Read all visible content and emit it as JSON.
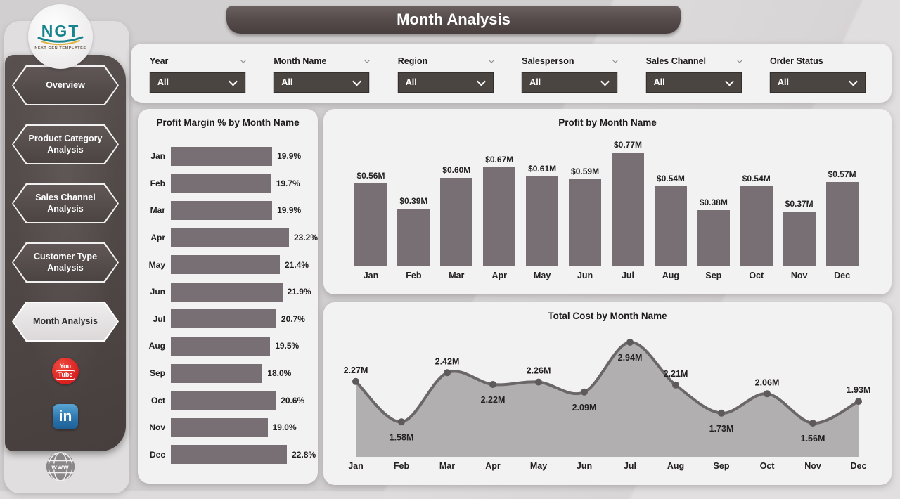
{
  "page_title": "Month Analysis",
  "logo": {
    "text": "NGT",
    "subtext": "NEXT GEN TEMPLATES"
  },
  "colors": {
    "page_bg": "#d2cfd0",
    "card_bg": "#f3f2f2",
    "dark_accent": "#4b4542",
    "bar_fill": "#786f74",
    "area_fill": "#b2afb0",
    "line_color": "#6b6667",
    "sidebar_active_bg": "#e5e2e3",
    "youtube_red": "#d91f1f",
    "linkedin_blue": "#2d76ae"
  },
  "sidebar": {
    "items": [
      {
        "label": "Overview",
        "active": false
      },
      {
        "label": "Product Category Analysis",
        "active": false
      },
      {
        "label": "Sales Channel Analysis",
        "active": false
      },
      {
        "label": "Customer Type Analysis",
        "active": false
      },
      {
        "label": "Month Analysis",
        "active": true
      }
    ],
    "social": {
      "youtube": {
        "line1": "You",
        "line2": "Tube"
      },
      "linkedin": {
        "text": "in"
      },
      "website": {
        "text": "www"
      }
    }
  },
  "filters": [
    {
      "label": "Year",
      "value": "All",
      "header_chevron": true
    },
    {
      "label": "Month Name",
      "value": "All",
      "header_chevron": true
    },
    {
      "label": "Region",
      "value": "All",
      "header_chevron": true
    },
    {
      "label": "Salesperson",
      "value": "All",
      "header_chevron": true
    },
    {
      "label": "Sales Channel",
      "value": "All",
      "header_chevron": true
    },
    {
      "label": "Order Status",
      "value": "All",
      "header_chevron": false
    }
  ],
  "chart_data": [
    {
      "type": "bar",
      "orientation": "horizontal",
      "title": "Profit Margin % by Month Name",
      "categories": [
        "Jan",
        "Feb",
        "Mar",
        "Apr",
        "May",
        "Jun",
        "Jul",
        "Aug",
        "Sep",
        "Oct",
        "Nov",
        "Dec"
      ],
      "values": [
        19.9,
        19.7,
        19.9,
        23.2,
        21.4,
        21.9,
        20.7,
        19.5,
        18.0,
        20.6,
        19.0,
        22.8
      ],
      "labels": [
        "19.9%",
        "19.7%",
        "19.9%",
        "23.2%",
        "21.4%",
        "21.9%",
        "20.7%",
        "19.5%",
        "18.0%",
        "20.6%",
        "19.0%",
        "22.8%"
      ],
      "xlabel": "",
      "ylabel": "",
      "xlim": [
        0,
        23.2
      ],
      "grid": false,
      "legend": false
    },
    {
      "type": "bar",
      "orientation": "vertical",
      "title": "Profit by Month Name",
      "categories": [
        "Jan",
        "Feb",
        "Mar",
        "Apr",
        "May",
        "Jun",
        "Jul",
        "Aug",
        "Sep",
        "Oct",
        "Nov",
        "Dec"
      ],
      "values": [
        0.56,
        0.39,
        0.6,
        0.67,
        0.61,
        0.59,
        0.77,
        0.54,
        0.38,
        0.54,
        0.37,
        0.57
      ],
      "labels": [
        "$0.56M",
        "$0.39M",
        "$0.60M",
        "$0.67M",
        "$0.61M",
        "$0.59M",
        "$0.77M",
        "$0.54M",
        "$0.38M",
        "$0.54M",
        "$0.37M",
        "$0.57M"
      ],
      "xlabel": "",
      "ylabel": "",
      "ylim": [
        0,
        0.77
      ],
      "grid": false,
      "legend": false
    },
    {
      "type": "area",
      "title": "Total Cost by Month Name",
      "categories": [
        "Jan",
        "Feb",
        "Mar",
        "Apr",
        "May",
        "Jun",
        "Jul",
        "Aug",
        "Sep",
        "Oct",
        "Nov",
        "Dec"
      ],
      "values": [
        2.27,
        1.58,
        2.42,
        2.22,
        2.26,
        2.09,
        2.94,
        2.21,
        1.73,
        2.06,
        1.56,
        1.93
      ],
      "labels": [
        "2.27M",
        "1.58M",
        "2.42M",
        "2.22M",
        "2.26M",
        "2.09M",
        "2.94M",
        "2.21M",
        "1.73M",
        "2.06M",
        "1.56M",
        "1.93M"
      ],
      "label_positions": [
        "above",
        "below",
        "above",
        "below",
        "above",
        "below",
        "below",
        "above",
        "below",
        "above",
        "below",
        "above"
      ],
      "xlabel": "",
      "ylabel": "",
      "ylim": [
        1.4,
        3.0
      ],
      "grid": false,
      "legend": false
    }
  ]
}
